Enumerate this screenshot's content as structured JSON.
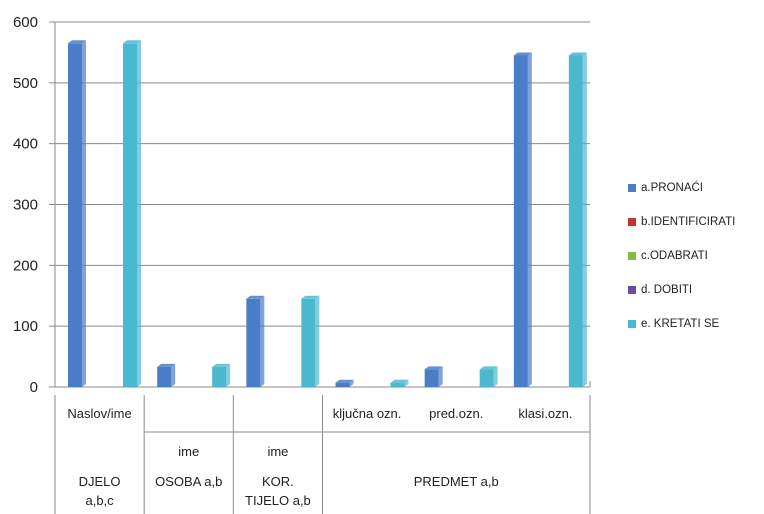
{
  "chart_data": {
    "type": "bar",
    "title": "",
    "xlabel": "",
    "ylabel": "",
    "ylim": [
      0,
      600
    ],
    "yticks": [
      0,
      100,
      200,
      300,
      400,
      500,
      600
    ],
    "grid": true,
    "legend_position": "right",
    "categories": [
      "Naslov/ime",
      "ime",
      "ime",
      "ključna ozn.",
      "pred.ozn.",
      "klasi.ozn."
    ],
    "groups": [
      {
        "line1": "DJELO",
        "line2": "a,b,c"
      },
      {
        "line1": "OSOBA a,b",
        "line2": ""
      },
      {
        "line1": "KOR.",
        "line2": "TIJELO a,b"
      },
      {
        "line1": "PREDMET a,b",
        "line2": ""
      }
    ],
    "series": [
      {
        "name": "a.PRONAĆI",
        "color": "#4a7cc8",
        "values": [
          565,
          33,
          145,
          7,
          29,
          545
        ]
      },
      {
        "name": "b.IDENTIFICIRATI",
        "color": "#c0392b",
        "values": [
          0,
          0,
          0,
          0,
          0,
          0
        ]
      },
      {
        "name": "c.ODABRATI",
        "color": "#8db43e",
        "values": [
          0,
          0,
          0,
          0,
          0,
          0
        ]
      },
      {
        "name": "d. DOBITI",
        "color": "#6a4fa0",
        "values": [
          0,
          0,
          0,
          0,
          0,
          0
        ]
      },
      {
        "name": "e. KRETATI SE",
        "color": "#4cb8cf",
        "values": [
          565,
          33,
          145,
          7,
          29,
          545
        ]
      }
    ]
  }
}
